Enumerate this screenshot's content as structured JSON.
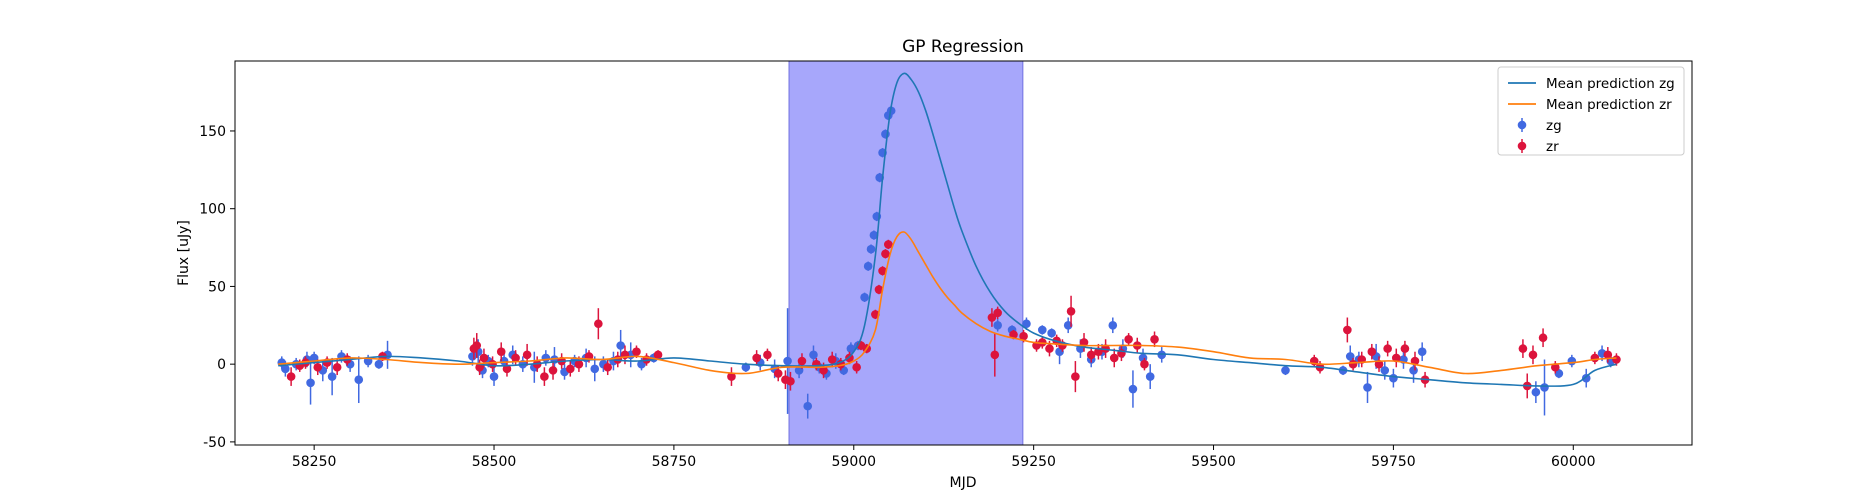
{
  "chart_data": {
    "type": "scatter",
    "title": "GP Regression",
    "xlabel": "MJD",
    "ylabel": "Flux [uJy]",
    "xlim": [
      58140,
      60165
    ],
    "ylim": [
      -52,
      195
    ],
    "xticks": [
      58250,
      58500,
      58750,
      59000,
      59250,
      59500,
      59750,
      60000
    ],
    "yticks": [
      -50,
      0,
      50,
      100,
      150
    ],
    "grid": false,
    "legend_position": "top-right",
    "highlight_span": {
      "x0": 58910,
      "x1": 59235,
      "color": "#a7a7fb"
    },
    "lines": [
      {
        "name": "Mean prediction zg",
        "color": "#1f77b4",
        "x": [
          58200,
          58250,
          58300,
          58350,
          58400,
          58450,
          58500,
          58550,
          58600,
          58650,
          58700,
          58750,
          58800,
          58850,
          58900,
          58950,
          58980,
          59000,
          59015,
          59030,
          59040,
          59050,
          59060,
          59070,
          59080,
          59090,
          59100,
          59110,
          59120,
          59130,
          59140,
          59150,
          59170,
          59190,
          59210,
          59230,
          59250,
          59280,
          59320,
          59360,
          59400,
          59450,
          59500,
          59550,
          59600,
          59650,
          59700,
          59750,
          59800,
          59850,
          59900,
          59950,
          60000,
          60030,
          60060
        ],
        "y": [
          -1,
          1,
          3,
          5,
          4,
          2,
          -1,
          0,
          2,
          3,
          2,
          4,
          2,
          0,
          -1,
          -1,
          1,
          8,
          25,
          70,
          120,
          160,
          181,
          187,
          183,
          175,
          163,
          148,
          132,
          116,
          100,
          86,
          63,
          46,
          34,
          26,
          20,
          15,
          11,
          9,
          7,
          6,
          3,
          1,
          -1,
          -2,
          -5,
          -8,
          -10,
          -12,
          -13,
          -14,
          -13,
          -4,
          0
        ]
      },
      {
        "name": "Mean prediction zr",
        "color": "#ff7f0e",
        "x": [
          58200,
          58250,
          58300,
          58350,
          58400,
          58450,
          58500,
          58550,
          58600,
          58650,
          58700,
          58750,
          58800,
          58850,
          58900,
          58950,
          58980,
          59000,
          59015,
          59030,
          59040,
          59050,
          59060,
          59070,
          59080,
          59090,
          59100,
          59110,
          59120,
          59130,
          59140,
          59150,
          59170,
          59190,
          59210,
          59230,
          59250,
          59280,
          59320,
          59360,
          59400,
          59450,
          59500,
          59550,
          59600,
          59650,
          59700,
          59750,
          59800,
          59850,
          59900,
          59950,
          60000,
          60030,
          60060
        ],
        "y": [
          0,
          2,
          4,
          3,
          1,
          0,
          1,
          2,
          4,
          3,
          5,
          1,
          -4,
          -6,
          -2,
          -2,
          -1,
          2,
          8,
          22,
          48,
          70,
          82,
          85,
          80,
          72,
          64,
          56,
          49,
          43,
          38,
          33,
          26,
          21,
          18,
          16,
          14,
          13,
          12,
          12,
          12,
          11,
          8,
          4,
          3,
          0,
          1,
          2,
          -2,
          -6,
          -4,
          -1,
          1,
          3,
          4
        ]
      }
    ],
    "series": [
      {
        "name": "zg",
        "color": "#4169e1",
        "points": [
          [
            58205,
            1,
            4
          ],
          [
            58210,
            -3,
            5
          ],
          [
            58225,
            0,
            4
          ],
          [
            58240,
            3,
            5
          ],
          [
            58245,
            -12,
            14
          ],
          [
            58250,
            4,
            4
          ],
          [
            58262,
            -4,
            7
          ],
          [
            58275,
            -8,
            12
          ],
          [
            58288,
            5,
            4
          ],
          [
            58300,
            0,
            5
          ],
          [
            58312,
            -10,
            15
          ],
          [
            58325,
            2,
            4
          ],
          [
            58340,
            0,
            3
          ],
          [
            58352,
            6,
            9
          ],
          [
            58470,
            5,
            6
          ],
          [
            58478,
            8,
            8
          ],
          [
            58484,
            -4,
            5
          ],
          [
            58492,
            2,
            4
          ],
          [
            58500,
            -8,
            6
          ],
          [
            58514,
            2,
            5
          ],
          [
            58526,
            6,
            6
          ],
          [
            58540,
            0,
            5
          ],
          [
            58556,
            -2,
            10
          ],
          [
            58572,
            4,
            5
          ],
          [
            58584,
            3,
            8
          ],
          [
            58598,
            -5,
            5
          ],
          [
            58612,
            2,
            4
          ],
          [
            58628,
            4,
            6
          ],
          [
            58640,
            -3,
            8
          ],
          [
            58652,
            0,
            5
          ],
          [
            58666,
            2,
            6
          ],
          [
            58676,
            12,
            10
          ],
          [
            58690,
            6,
            8
          ],
          [
            58705,
            0,
            4
          ],
          [
            58722,
            4,
            3
          ],
          [
            58850,
            -2,
            3
          ],
          [
            58870,
            1,
            5
          ],
          [
            58890,
            -3,
            6
          ],
          [
            58908,
            2,
            34
          ],
          [
            58924,
            -4,
            5
          ],
          [
            58936,
            -27,
            8
          ],
          [
            58944,
            6,
            6
          ],
          [
            58952,
            -2,
            4
          ],
          [
            58962,
            -6,
            4
          ],
          [
            58975,
            2,
            5
          ],
          [
            58986,
            -4,
            3
          ],
          [
            58996,
            10,
            4
          ],
          [
            59006,
            12,
            3
          ],
          [
            59015,
            43,
            3
          ],
          [
            59020,
            63,
            3
          ],
          [
            59024,
            74,
            3
          ],
          [
            59028,
            83,
            3
          ],
          [
            59032,
            95,
            3
          ],
          [
            59036,
            120,
            3
          ],
          [
            59040,
            136,
            3
          ],
          [
            59044,
            148,
            3
          ],
          [
            59048,
            160,
            3
          ],
          [
            59052,
            163,
            3
          ],
          [
            59200,
            25,
            4
          ],
          [
            59220,
            22,
            3
          ],
          [
            59240,
            26,
            4
          ],
          [
            59262,
            22,
            3
          ],
          [
            59275,
            20,
            3
          ],
          [
            59286,
            8,
            8
          ],
          [
            59298,
            25,
            5
          ],
          [
            59315,
            10,
            6
          ],
          [
            59330,
            3,
            5
          ],
          [
            59345,
            8,
            5
          ],
          [
            59360,
            25,
            5
          ],
          [
            59374,
            10,
            6
          ],
          [
            59388,
            -16,
            12
          ],
          [
            59402,
            4,
            6
          ],
          [
            59412,
            -8,
            8
          ],
          [
            59428,
            6,
            5
          ],
          [
            59600,
            -4,
            3
          ],
          [
            59680,
            -4,
            3
          ],
          [
            59690,
            5,
            7
          ],
          [
            59702,
            3,
            5
          ],
          [
            59714,
            -15,
            10
          ],
          [
            59726,
            5,
            8
          ],
          [
            59738,
            -4,
            6
          ],
          [
            59750,
            -9,
            6
          ],
          [
            59764,
            3,
            6
          ],
          [
            59778,
            -4,
            8
          ],
          [
            59790,
            8,
            6
          ],
          [
            59948,
            -18,
            7
          ],
          [
            59960,
            -15,
            18
          ],
          [
            59980,
            -6,
            3
          ],
          [
            59998,
            2,
            4
          ],
          [
            60018,
            -9,
            6
          ],
          [
            60040,
            7,
            5
          ],
          [
            60052,
            2,
            4
          ]
        ]
      },
      {
        "name": "zr",
        "color": "#dc143c",
        "points": [
          [
            58218,
            -8,
            6
          ],
          [
            58230,
            -1,
            4
          ],
          [
            58238,
            1,
            4
          ],
          [
            58255,
            -2,
            5
          ],
          [
            58268,
            1,
            4
          ],
          [
            58282,
            -2,
            5
          ],
          [
            58296,
            3,
            4
          ],
          [
            58345,
            5,
            3
          ],
          [
            58472,
            10,
            7
          ],
          [
            58476,
            12,
            8
          ],
          [
            58480,
            -2,
            5
          ],
          [
            58486,
            4,
            6
          ],
          [
            58498,
            0,
            5
          ],
          [
            58510,
            8,
            6
          ],
          [
            58518,
            -3,
            5
          ],
          [
            58530,
            4,
            5
          ],
          [
            58546,
            6,
            7
          ],
          [
            58560,
            0,
            5
          ],
          [
            58570,
            -8,
            6
          ],
          [
            58582,
            -4,
            6
          ],
          [
            58594,
            2,
            5
          ],
          [
            58606,
            -3,
            5
          ],
          [
            58618,
            0,
            5
          ],
          [
            58632,
            5,
            4
          ],
          [
            58645,
            26,
            10
          ],
          [
            58658,
            -2,
            5
          ],
          [
            58672,
            3,
            5
          ],
          [
            58682,
            6,
            6
          ],
          [
            58698,
            8,
            4
          ],
          [
            58712,
            3,
            4
          ],
          [
            58728,
            6,
            3
          ],
          [
            58830,
            -8,
            6
          ],
          [
            58865,
            4,
            5
          ],
          [
            58880,
            6,
            4
          ],
          [
            58895,
            -6,
            5
          ],
          [
            58905,
            -10,
            6
          ],
          [
            58912,
            -11,
            6
          ],
          [
            58928,
            2,
            5
          ],
          [
            58948,
            0,
            4
          ],
          [
            58958,
            -4,
            5
          ],
          [
            58970,
            3,
            5
          ],
          [
            58982,
            0,
            4
          ],
          [
            58994,
            4,
            4
          ],
          [
            59004,
            -2,
            4
          ],
          [
            59010,
            12,
            3
          ],
          [
            59018,
            10,
            3
          ],
          [
            59030,
            32,
            3
          ],
          [
            59035,
            48,
            3
          ],
          [
            59040,
            60,
            3
          ],
          [
            59044,
            71,
            3
          ],
          [
            59048,
            77,
            3
          ],
          [
            59192,
            30,
            6
          ],
          [
            59196,
            6,
            14
          ],
          [
            59200,
            33,
            4
          ],
          [
            59222,
            19,
            3
          ],
          [
            59236,
            18,
            4
          ],
          [
            59254,
            12,
            4
          ],
          [
            59262,
            14,
            4
          ],
          [
            59272,
            10,
            5
          ],
          [
            59282,
            15,
            4
          ],
          [
            59290,
            12,
            4
          ],
          [
            59302,
            34,
            10
          ],
          [
            59308,
            -8,
            10
          ],
          [
            59320,
            14,
            6
          ],
          [
            59330,
            6,
            5
          ],
          [
            59340,
            8,
            5
          ],
          [
            59350,
            10,
            6
          ],
          [
            59362,
            4,
            6
          ],
          [
            59372,
            7,
            5
          ],
          [
            59382,
            16,
            4
          ],
          [
            59394,
            12,
            5
          ],
          [
            59404,
            0,
            4
          ],
          [
            59418,
            16,
            5
          ],
          [
            59640,
            2,
            4
          ],
          [
            59648,
            -2,
            4
          ],
          [
            59686,
            22,
            8
          ],
          [
            59694,
            0,
            4
          ],
          [
            59706,
            3,
            5
          ],
          [
            59720,
            8,
            5
          ],
          [
            59730,
            0,
            5
          ],
          [
            59742,
            10,
            5
          ],
          [
            59754,
            4,
            6
          ],
          [
            59766,
            10,
            5
          ],
          [
            59780,
            2,
            6
          ],
          [
            59794,
            -10,
            5
          ],
          [
            59930,
            10,
            6
          ],
          [
            59936,
            -14,
            8
          ],
          [
            59944,
            6,
            6
          ],
          [
            59958,
            17,
            6
          ],
          [
            59975,
            -2,
            4
          ],
          [
            60030,
            4,
            4
          ],
          [
            60048,
            6,
            5
          ],
          [
            60060,
            3,
            4
          ]
        ]
      }
    ]
  }
}
